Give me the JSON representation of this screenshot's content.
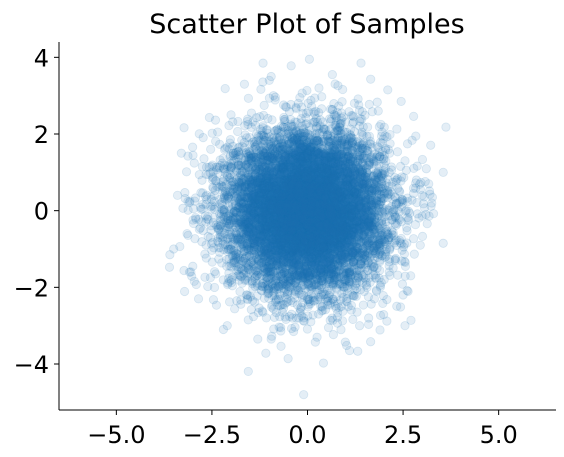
{
  "chart_data": {
    "type": "scatter",
    "title": "Scatter Plot of Samples",
    "xlabel": "",
    "ylabel": "",
    "xlim": [
      -6.5,
      6.5
    ],
    "ylim": [
      -5.2,
      4.4
    ],
    "x_ticks": [
      {
        "value": -5.0,
        "label": "−5.0"
      },
      {
        "value": -2.5,
        "label": "−2.5"
      },
      {
        "value": 0.0,
        "label": "0.0"
      },
      {
        "value": 2.5,
        "label": "2.5"
      },
      {
        "value": 5.0,
        "label": "5.0"
      }
    ],
    "y_ticks": [
      {
        "value": -4,
        "label": "−4"
      },
      {
        "value": -2,
        "label": "−2"
      },
      {
        "value": 0,
        "label": "0"
      },
      {
        "value": 2,
        "label": "2"
      },
      {
        "value": 4,
        "label": "4"
      }
    ],
    "grid": false,
    "marker_color": "#1f77b4",
    "marker_alpha": 0.12,
    "distribution": {
      "kind": "standard-normal-2d",
      "mean": [
        0,
        0
      ],
      "std": [
        1,
        1
      ],
      "n": 10000
    },
    "series": [
      {
        "points": [
          [
            0.05,
            3.95
          ],
          [
            1.4,
            3.85
          ],
          [
            -0.95,
            3.5
          ],
          [
            0.65,
            3.55
          ],
          [
            -1.0,
            3.4
          ],
          [
            -1.65,
            3.3
          ],
          [
            2.1,
            3.15
          ],
          [
            0.3,
            3.2
          ],
          [
            -0.2,
            2.95
          ],
          [
            2.45,
            2.85
          ],
          [
            1.85,
            2.6
          ],
          [
            -2.0,
            2.5
          ],
          [
            -3.3,
            1.5
          ],
          [
            -3.4,
            0.4
          ],
          [
            3.55,
            1.0
          ],
          [
            3.0,
            0.4
          ],
          [
            3.1,
            -0.1
          ],
          [
            3.25,
            0.2
          ],
          [
            -3.5,
            -1.0
          ],
          [
            -3.6,
            -1.15
          ],
          [
            -3.15,
            -0.6
          ],
          [
            3.55,
            -0.85
          ],
          [
            -3.0,
            -1.45
          ],
          [
            -3.05,
            -1.6
          ],
          [
            2.7,
            -1.7
          ],
          [
            2.5,
            -2.2
          ],
          [
            -2.85,
            -2.3
          ],
          [
            -2.1,
            -3.0
          ],
          [
            -2.2,
            -3.1
          ],
          [
            -1.3,
            -3.35
          ],
          [
            -0.95,
            -3.35
          ],
          [
            -0.7,
            -3.05
          ],
          [
            -0.15,
            -2.75
          ],
          [
            0.55,
            -3.05
          ],
          [
            1.1,
            -3.65
          ],
          [
            2.55,
            -3.0
          ],
          [
            1.6,
            -2.8
          ],
          [
            0.25,
            -3.3
          ],
          [
            -0.1,
            -4.8
          ],
          [
            -1.55,
            -2.85
          ],
          [
            1.95,
            2.05
          ],
          [
            -2.35,
            2.05
          ],
          [
            2.55,
            1.3
          ],
          [
            -2.75,
            1.15
          ],
          [
            -2.4,
            -1.65
          ],
          [
            2.3,
            -1.3
          ],
          [
            1.2,
            2.45
          ],
          [
            -1.25,
            2.45
          ],
          [
            0.75,
            -2.55
          ],
          [
            -0.55,
            2.7
          ],
          [
            2.85,
            0.8
          ],
          [
            -2.95,
            0.25
          ],
          [
            -2.8,
            -0.45
          ],
          [
            2.95,
            -0.9
          ],
          [
            1.75,
            -2.3
          ],
          [
            -1.85,
            -2.35
          ]
        ]
      }
    ]
  }
}
